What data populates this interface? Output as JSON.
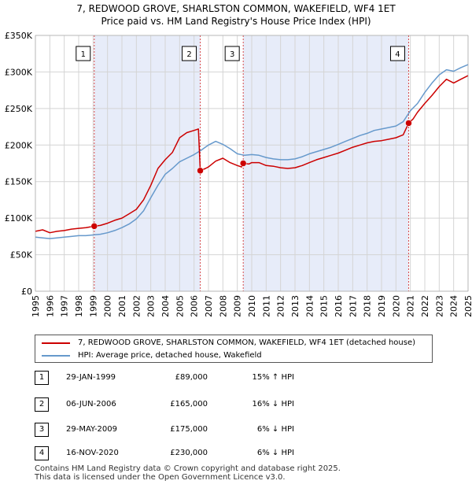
{
  "header": {
    "title_line1": "7, REDWOOD GROVE, SHARLSTON COMMON, WAKEFIELD, WF4 1ET",
    "title_line2": "Price paid vs. HM Land Registry's House Price Index (HPI)"
  },
  "colors": {
    "property": "#cc0000",
    "hpi": "#6699cc",
    "shade": "#dfe6f7",
    "grid": "#d4d4d4",
    "marker_line": "#cc0000"
  },
  "chart_data": {
    "type": "line",
    "title": "7, REDWOOD GROVE, SHARLSTON COMMON, WAKEFIELD, WF4 1ET — Price paid vs. HM Land Registry's House Price Index (HPI)",
    "xlabel": "",
    "ylabel": "",
    "xlim": [
      1995,
      2025
    ],
    "ylim": [
      0,
      350000
    ],
    "y_ticks": [
      0,
      50000,
      100000,
      150000,
      200000,
      250000,
      300000,
      350000
    ],
    "y_tick_labels": [
      "£0",
      "£50K",
      "£100K",
      "£150K",
      "£200K",
      "£250K",
      "£300K",
      "£350K"
    ],
    "x_ticks": [
      1995,
      1996,
      1997,
      1998,
      1999,
      2000,
      2001,
      2002,
      2003,
      2004,
      2005,
      2006,
      2007,
      2008,
      2009,
      2010,
      2011,
      2012,
      2013,
      2014,
      2015,
      2016,
      2017,
      2018,
      2019,
      2020,
      2021,
      2022,
      2023,
      2024,
      2025
    ],
    "shaded_ranges": [
      [
        1999.08,
        2006.43
      ],
      [
        2009.41,
        2020.88
      ]
    ],
    "sale_markers": [
      {
        "label": "1",
        "x": 1999.08,
        "y": 89000
      },
      {
        "label": "2",
        "x": 2006.43,
        "y": 165000
      },
      {
        "label": "3",
        "x": 2009.41,
        "y": 175000
      },
      {
        "label": "4",
        "x": 2020.88,
        "y": 230000
      }
    ],
    "series": [
      {
        "name": "7, REDWOOD GROVE, SHARLSTON COMMON, WAKEFIELD, WF4 1ET (detached house)",
        "color": "#cc0000",
        "x": [
          1995,
          1995.5,
          1996,
          1996.5,
          1997,
          1997.5,
          1998,
          1998.5,
          1999.08,
          1999.5,
          2000,
          2000.5,
          2001,
          2001.5,
          2002,
          2002.5,
          2003,
          2003.5,
          2004,
          2004.5,
          2005,
          2005.5,
          2006,
          2006.3,
          2006.43,
          2006.8,
          2007,
          2007.5,
          2008,
          2008.5,
          2009,
          2009.3,
          2009.41,
          2009.8,
          2010,
          2010.5,
          2011,
          2011.5,
          2012,
          2012.5,
          2013,
          2013.5,
          2014,
          2014.5,
          2015,
          2015.5,
          2016,
          2016.5,
          2017,
          2017.5,
          2018,
          2018.5,
          2019,
          2019.5,
          2020,
          2020.5,
          2020.88,
          2021.2,
          2021.5,
          2022,
          2022.5,
          2023,
          2023.5,
          2024,
          2024.5,
          2025
        ],
        "y": [
          82000,
          84000,
          80000,
          82000,
          83000,
          85000,
          86000,
          87000,
          89000,
          90000,
          93000,
          97000,
          100000,
          106000,
          112000,
          125000,
          145000,
          168000,
          180000,
          190000,
          210000,
          217000,
          220000,
          222000,
          165000,
          168000,
          170000,
          178000,
          182000,
          176000,
          172000,
          170000,
          175000,
          174000,
          176000,
          176000,
          172000,
          171000,
          169000,
          168000,
          169000,
          172000,
          176000,
          180000,
          183000,
          186000,
          189000,
          193000,
          197000,
          200000,
          203000,
          205000,
          206000,
          208000,
          210000,
          214000,
          230000,
          236000,
          245000,
          257000,
          268000,
          280000,
          290000,
          285000,
          290000,
          295000
        ]
      },
      {
        "name": "HPI: Average price, detached house, Wakefield",
        "color": "#6699cc",
        "x": [
          1995,
          1995.5,
          1996,
          1996.5,
          1997,
          1997.5,
          1998,
          1998.5,
          1999,
          1999.5,
          2000,
          2000.5,
          2001,
          2001.5,
          2002,
          2002.5,
          2003,
          2003.5,
          2004,
          2004.5,
          2005,
          2005.5,
          2006,
          2006.5,
          2007,
          2007.5,
          2008,
          2008.5,
          2009,
          2009.5,
          2010,
          2010.5,
          2011,
          2011.5,
          2012,
          2012.5,
          2013,
          2013.5,
          2014,
          2014.5,
          2015,
          2015.5,
          2016,
          2016.5,
          2017,
          2017.5,
          2018,
          2018.5,
          2019,
          2019.5,
          2020,
          2020.5,
          2021,
          2021.5,
          2022,
          2022.5,
          2023,
          2023.5,
          2024,
          2024.5,
          2025
        ],
        "y": [
          74000,
          73000,
          72000,
          73000,
          74000,
          75000,
          76000,
          76000,
          77000,
          78000,
          80000,
          83000,
          87000,
          92000,
          99000,
          110000,
          128000,
          145000,
          160000,
          168000,
          177000,
          182000,
          187000,
          193000,
          200000,
          205000,
          201000,
          195000,
          188000,
          186000,
          187000,
          186000,
          183000,
          181000,
          180000,
          180000,
          181000,
          184000,
          188000,
          191000,
          194000,
          197000,
          201000,
          205000,
          209000,
          213000,
          216000,
          220000,
          222000,
          224000,
          226000,
          232000,
          247000,
          257000,
          272000,
          285000,
          296000,
          303000,
          301000,
          306000,
          310000
        ]
      }
    ]
  },
  "legend": {
    "property_label": "7, REDWOOD GROVE, SHARLSTON COMMON, WAKEFIELD, WF4 1ET (detached house)",
    "hpi_label": "HPI: Average price, detached house, Wakefield"
  },
  "sales": [
    {
      "num": "1",
      "date": "29-JAN-1999",
      "price": "£89,000",
      "hpi": "15% ↑ HPI"
    },
    {
      "num": "2",
      "date": "06-JUN-2006",
      "price": "£165,000",
      "hpi": "16% ↓ HPI"
    },
    {
      "num": "3",
      "date": "29-MAY-2009",
      "price": "£175,000",
      "hpi": "6% ↓ HPI"
    },
    {
      "num": "4",
      "date": "16-NOV-2020",
      "price": "£230,000",
      "hpi": "6% ↓ HPI"
    }
  ],
  "footer": {
    "line1": "Contains HM Land Registry data © Crown copyright and database right 2025.",
    "line2": "This data is licensed under the Open Government Licence v3.0."
  }
}
